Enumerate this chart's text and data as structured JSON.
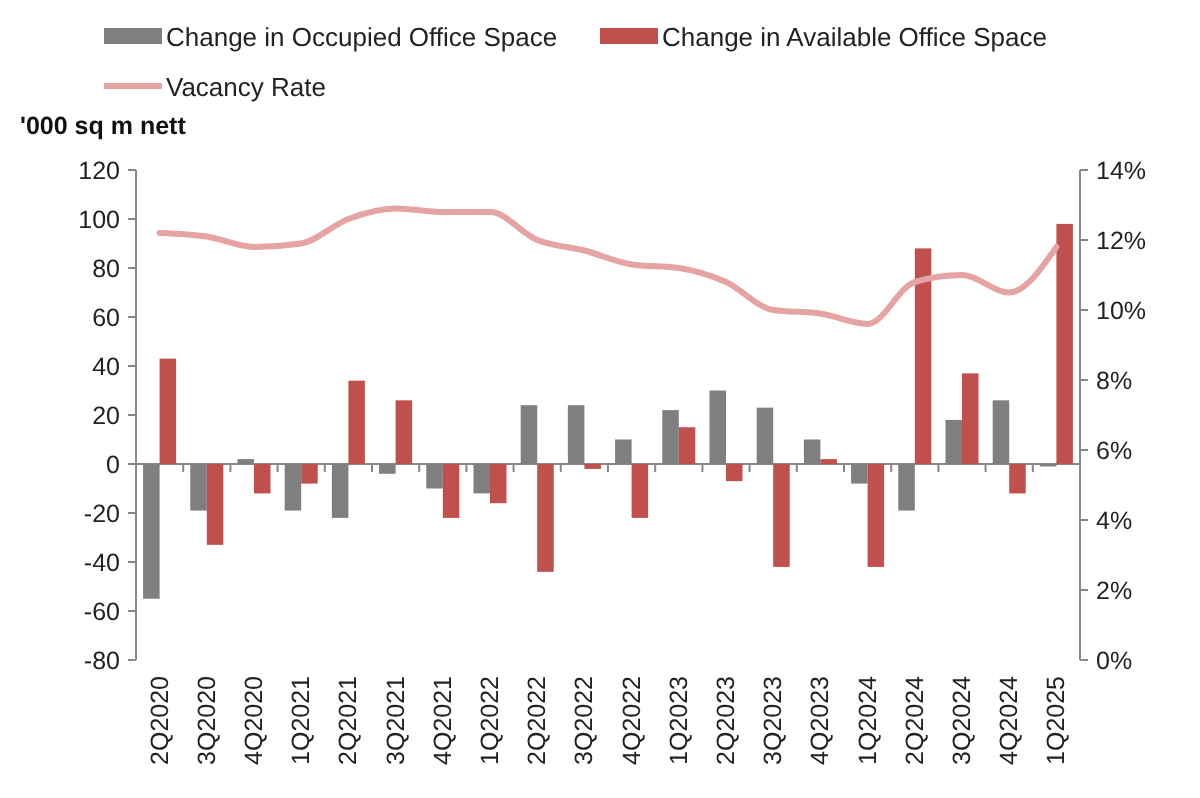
{
  "chart_data": {
    "type": "bar",
    "ylabel": "'000 sq m nett",
    "categories": [
      "2Q2020",
      "3Q2020",
      "4Q2020",
      "1Q2021",
      "2Q2021",
      "3Q2021",
      "4Q2021",
      "1Q2022",
      "2Q2022",
      "3Q2022",
      "4Q2022",
      "1Q2023",
      "2Q2023",
      "3Q2023",
      "4Q2023",
      "1Q2024",
      "2Q2024",
      "3Q2024",
      "4Q2024",
      "1Q2025"
    ],
    "series": [
      {
        "name": "Change in Occupied Office Space",
        "color": "#7f7f7f",
        "values": [
          -55,
          -19,
          2,
          -19,
          -22,
          -4,
          -10,
          -12,
          24,
          24,
          10,
          22,
          30,
          23,
          10,
          -8,
          -19,
          18,
          26,
          -1
        ]
      },
      {
        "name": "Change in Available Office Space",
        "color": "#c0504d",
        "values": [
          43,
          -33,
          -12,
          -8,
          34,
          26,
          -22,
          -16,
          -44,
          -2,
          -22,
          15,
          -7,
          -42,
          2,
          -42,
          88,
          37,
          -12,
          98
        ]
      },
      {
        "name": "Vacancy Rate",
        "type": "line",
        "axis": "y2",
        "color": "#e6a3a3",
        "values": [
          12.2,
          12.1,
          11.8,
          11.9,
          12.6,
          12.9,
          12.8,
          12.8,
          12.0,
          11.7,
          11.3,
          11.2,
          10.8,
          10.0,
          9.9,
          9.6,
          10.8,
          11.0,
          10.5,
          11.8
        ]
      }
    ],
    "ylim": [
      -80,
      120
    ],
    "yticks": [
      -80,
      -60,
      -40,
      -20,
      0,
      20,
      40,
      60,
      80,
      100,
      120
    ],
    "y2lim": [
      0,
      14
    ],
    "y2ticks": [
      {
        "value": 0,
        "label": "0%"
      },
      {
        "value": 2,
        "label": "2%"
      },
      {
        "value": 4,
        "label": "4%"
      },
      {
        "value": 6,
        "label": "6%"
      },
      {
        "value": 8,
        "label": "8%"
      },
      {
        "value": 10,
        "label": "10%"
      },
      {
        "value": 12,
        "label": "12%"
      },
      {
        "value": 14,
        "label": "14%"
      }
    ],
    "legend": "top"
  }
}
